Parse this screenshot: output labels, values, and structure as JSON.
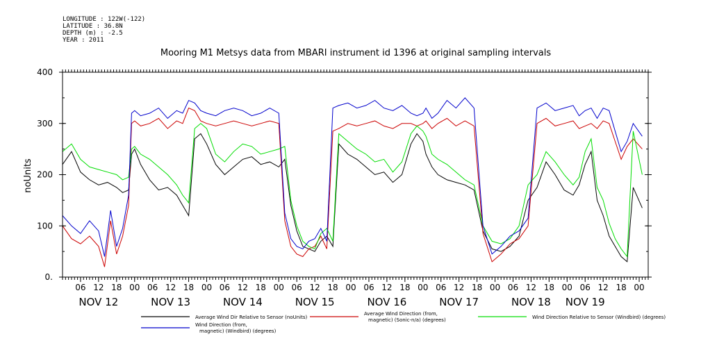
{
  "header": {
    "longitude": "LONGITUDE : 122W(-122)",
    "latitude": "LATITUDE : 36.8N",
    "depth": "DEPTH (m) : -2.5",
    "year": "YEAR : 2011"
  },
  "chart_data": {
    "type": "line",
    "title": "Mooring M1 Metsys data from MBARI instrument id 1396 at original sampling intervals",
    "ylabel": "noUnits",
    "ylim": [
      0,
      400
    ],
    "y_ticks": [
      "0.",
      "100",
      "200",
      "300",
      "400"
    ],
    "x_unit": "hours since 2011-11-11 12:00",
    "xlim": [
      0,
      195
    ],
    "hour_ticks": [
      {
        "x": 6,
        "label": "06"
      },
      {
        "x": 12,
        "label": "12"
      },
      {
        "x": 18,
        "label": "18"
      },
      {
        "x": 24,
        "label": "00"
      },
      {
        "x": 30,
        "label": "06"
      },
      {
        "x": 36,
        "label": "12"
      },
      {
        "x": 42,
        "label": "18"
      },
      {
        "x": 48,
        "label": "00"
      },
      {
        "x": 54,
        "label": "06"
      },
      {
        "x": 60,
        "label": "12"
      },
      {
        "x": 66,
        "label": "18"
      },
      {
        "x": 72,
        "label": "00"
      },
      {
        "x": 78,
        "label": "06"
      },
      {
        "x": 84,
        "label": "12"
      },
      {
        "x": 90,
        "label": "18"
      },
      {
        "x": 96,
        "label": "00"
      },
      {
        "x": 102,
        "label": "06"
      },
      {
        "x": 108,
        "label": "12"
      },
      {
        "x": 114,
        "label": "18"
      },
      {
        "x": 120,
        "label": "00"
      },
      {
        "x": 126,
        "label": "06"
      },
      {
        "x": 132,
        "label": "12"
      },
      {
        "x": 138,
        "label": "18"
      },
      {
        "x": 144,
        "label": "00"
      },
      {
        "x": 150,
        "label": "06"
      },
      {
        "x": 156,
        "label": "12"
      },
      {
        "x": 162,
        "label": "18"
      },
      {
        "x": 168,
        "label": "00"
      },
      {
        "x": 174,
        "label": "06"
      },
      {
        "x": 180,
        "label": "12"
      },
      {
        "x": 186,
        "label": "18"
      },
      {
        "x": 192,
        "label": "00"
      }
    ],
    "day_labels": [
      {
        "x": 12,
        "label": "NOV 12"
      },
      {
        "x": 36,
        "label": "NOV 13"
      },
      {
        "x": 60,
        "label": "NOV 14"
      },
      {
        "x": 84,
        "label": "NOV 15"
      },
      {
        "x": 108,
        "label": "NOV 16"
      },
      {
        "x": 132,
        "label": "NOV 17"
      },
      {
        "x": 156,
        "label": "NOV 18"
      },
      {
        "x": 174,
        "label": "NOV 19"
      }
    ],
    "series": [
      {
        "name": "Average Wind Dir Relative to Sensor (noUnits)",
        "color": "#000000",
        "x": [
          0,
          3,
          6,
          9,
          12,
          15,
          18,
          20,
          22,
          23,
          24,
          26,
          29,
          32,
          35,
          38,
          40,
          42,
          44,
          46,
          48,
          51,
          54,
          57,
          60,
          63,
          66,
          69,
          72,
          74,
          76,
          78,
          80,
          82,
          84,
          86,
          88,
          90,
          92,
          95,
          98,
          101,
          104,
          107,
          110,
          113,
          116,
          118,
          120,
          121,
          123,
          125,
          128,
          131,
          134,
          137,
          140,
          143,
          146,
          149,
          152,
          155,
          158,
          161,
          164,
          167,
          170,
          172,
          174,
          176,
          178,
          180,
          182,
          184,
          186,
          188,
          190,
          193
        ],
        "y": [
          220,
          245,
          205,
          190,
          180,
          185,
          175,
          165,
          170,
          240,
          250,
          220,
          190,
          170,
          175,
          160,
          140,
          120,
          270,
          280,
          260,
          220,
          200,
          215,
          230,
          235,
          220,
          225,
          215,
          230,
          140,
          90,
          60,
          55,
          50,
          70,
          80,
          60,
          260,
          240,
          230,
          215,
          200,
          205,
          185,
          200,
          260,
          280,
          265,
          240,
          215,
          200,
          190,
          185,
          180,
          170,
          90,
          55,
          50,
          60,
          80,
          150,
          175,
          225,
          200,
          170,
          160,
          180,
          220,
          245,
          150,
          120,
          80,
          60,
          40,
          30,
          175,
          135
        ]
      },
      {
        "name": "Average Wind Direction (from, magnetic) (Sonic-n/a) (degrees)",
        "color": "#cc0000",
        "x": [
          0,
          3,
          6,
          9,
          12,
          14,
          16,
          18,
          20,
          22,
          23,
          24,
          26,
          29,
          32,
          35,
          38,
          40,
          42,
          44,
          46,
          48,
          51,
          54,
          57,
          60,
          63,
          66,
          69,
          72,
          74,
          76,
          78,
          80,
          82,
          84,
          86,
          88,
          90,
          92,
          95,
          98,
          101,
          104,
          107,
          110,
          113,
          116,
          118,
          120,
          121,
          123,
          125,
          128,
          131,
          134,
          137,
          140,
          143,
          146,
          149,
          152,
          155,
          158,
          161,
          164,
          167,
          170,
          172,
          174,
          176,
          178,
          180,
          182,
          184,
          186,
          188,
          190,
          193
        ],
        "y": [
          100,
          75,
          65,
          80,
          60,
          20,
          110,
          45,
          80,
          140,
          300,
          305,
          295,
          300,
          310,
          290,
          305,
          300,
          330,
          325,
          305,
          300,
          295,
          300,
          305,
          300,
          295,
          300,
          305,
          300,
          110,
          60,
          45,
          40,
          55,
          60,
          80,
          55,
          285,
          290,
          300,
          295,
          300,
          305,
          295,
          290,
          300,
          300,
          295,
          300,
          305,
          290,
          300,
          310,
          295,
          305,
          295,
          85,
          30,
          45,
          65,
          75,
          100,
          300,
          310,
          295,
          300,
          305,
          290,
          295,
          300,
          290,
          305,
          300,
          265,
          230,
          255,
          270,
          250
        ]
      },
      {
        "name": "Wind Direction Relative to Sensor (Windbird) (degrees)",
        "color": "#00dd00",
        "x": [
          0,
          3,
          6,
          9,
          12,
          15,
          18,
          20,
          22,
          23,
          24,
          26,
          29,
          32,
          35,
          38,
          40,
          42,
          44,
          46,
          48,
          51,
          54,
          57,
          60,
          63,
          66,
          69,
          72,
          74,
          76,
          78,
          80,
          82,
          84,
          86,
          88,
          90,
          92,
          95,
          98,
          101,
          104,
          107,
          110,
          113,
          116,
          118,
          120,
          121,
          123,
          125,
          128,
          131,
          134,
          137,
          140,
          143,
          146,
          149,
          152,
          155,
          158,
          161,
          164,
          167,
          170,
          172,
          174,
          176,
          178,
          180,
          182,
          184,
          186,
          188,
          190,
          193
        ],
        "y": [
          245,
          260,
          230,
          215,
          210,
          205,
          200,
          190,
          195,
          250,
          255,
          240,
          230,
          215,
          200,
          180,
          160,
          145,
          290,
          300,
          290,
          240,
          225,
          245,
          260,
          255,
          240,
          245,
          250,
          255,
          150,
          100,
          70,
          60,
          55,
          85,
          95,
          70,
          280,
          265,
          250,
          240,
          225,
          230,
          205,
          225,
          280,
          295,
          285,
          275,
          240,
          230,
          220,
          205,
          190,
          180,
          100,
          70,
          65,
          75,
          100,
          180,
          200,
          245,
          225,
          200,
          180,
          195,
          245,
          270,
          175,
          150,
          105,
          75,
          55,
          40,
          285,
          200
        ]
      },
      {
        "name": "Wind Direction (from, magnetic) (Windbird) (degrees)",
        "color": "#0000cc",
        "x": [
          0,
          3,
          6,
          9,
          12,
          14,
          16,
          18,
          20,
          22,
          23,
          24,
          26,
          29,
          32,
          35,
          38,
          40,
          42,
          44,
          46,
          48,
          51,
          54,
          57,
          60,
          63,
          66,
          69,
          72,
          74,
          76,
          78,
          80,
          82,
          84,
          86,
          88,
          90,
          92,
          95,
          98,
          101,
          104,
          107,
          110,
          113,
          116,
          118,
          120,
          121,
          123,
          125,
          128,
          131,
          134,
          137,
          140,
          143,
          146,
          149,
          152,
          155,
          158,
          161,
          164,
          167,
          170,
          172,
          174,
          176,
          178,
          180,
          182,
          184,
          186,
          188,
          190,
          193
        ],
        "y": [
          120,
          100,
          85,
          110,
          90,
          40,
          130,
          60,
          95,
          160,
          320,
          325,
          315,
          320,
          330,
          310,
          325,
          320,
          345,
          340,
          325,
          320,
          315,
          325,
          330,
          325,
          315,
          320,
          330,
          320,
          125,
          75,
          60,
          55,
          70,
          75,
          95,
          70,
          330,
          335,
          340,
          330,
          335,
          345,
          330,
          325,
          335,
          320,
          315,
          320,
          330,
          310,
          320,
          345,
          330,
          350,
          330,
          100,
          45,
          60,
          80,
          90,
          115,
          330,
          340,
          325,
          330,
          335,
          315,
          325,
          330,
          310,
          330,
          325,
          285,
          245,
          265,
          300,
          275
        ]
      }
    ]
  },
  "legend": [
    {
      "line1": "Average Wind Dir Relative to Sensor (noUnits)",
      "line2": "",
      "color": "#000000"
    },
    {
      "line1": "Average Wind Direction (from,",
      "line2": "magnetic) (Sonic-n/a) (degrees)",
      "color": "#cc0000"
    },
    {
      "line1": "Wind Direction Relative to Sensor (Windbird) (degrees)",
      "line2": "",
      "color": "#00dd00"
    },
    {
      "line1": "Wind Direction (from,",
      "line2": "magnetic) (Windbird) (degrees)",
      "color": "#0000cc"
    }
  ]
}
